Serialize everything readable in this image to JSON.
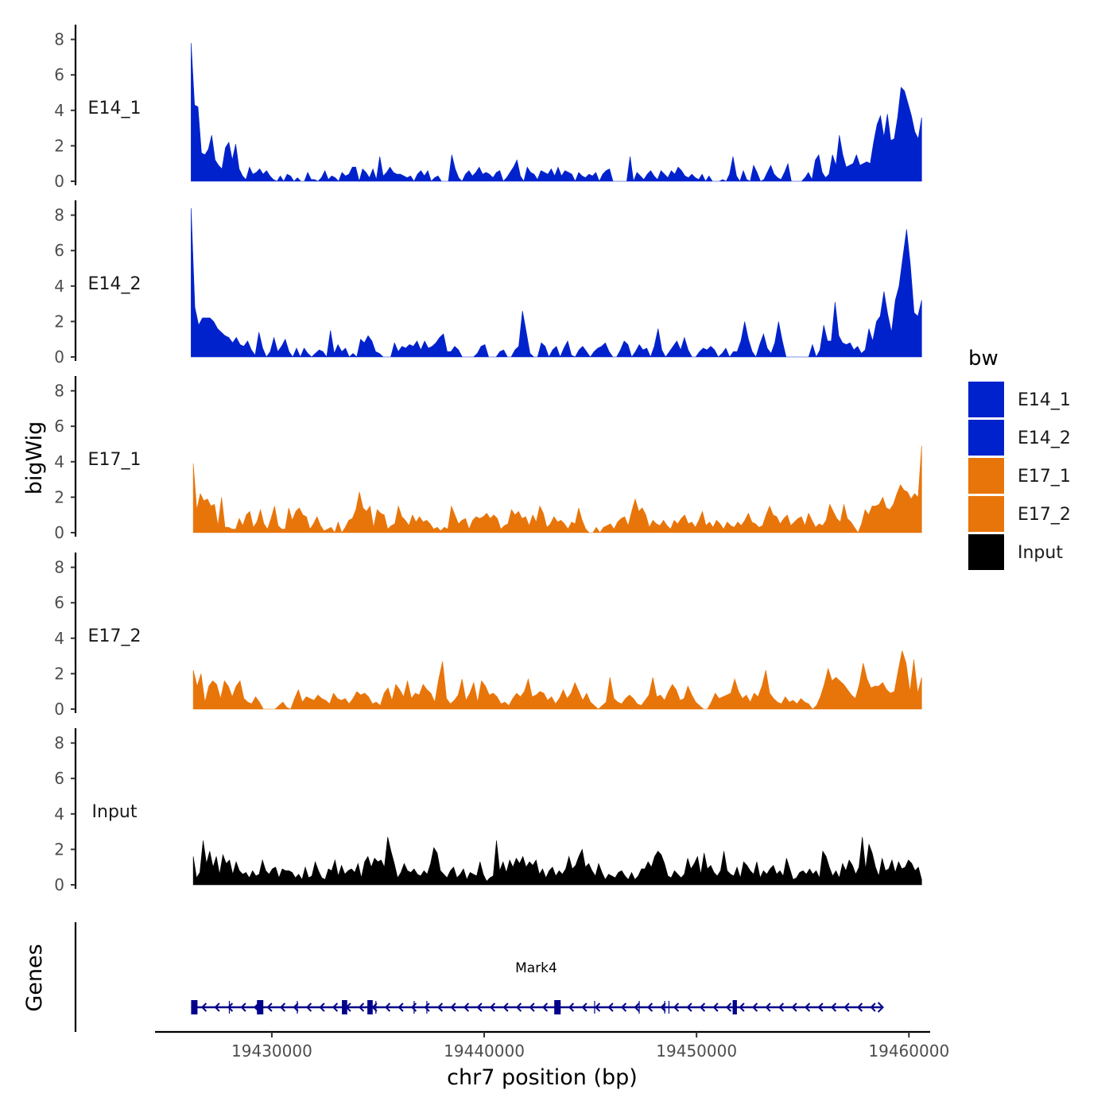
{
  "chart_data": {
    "type": "area",
    "xlabel": "chr7 position (bp)",
    "ylabel": "bigWig",
    "genes_label": "Genes",
    "chromosome": "chr7",
    "xlim": [
      19424500,
      19461000
    ],
    "x_ticks": [
      19430000,
      19440000,
      19450000,
      19460000
    ],
    "x_tick_labels": [
      "19430000",
      "19440000",
      "19450000",
      "19460000"
    ],
    "ylim": [
      0,
      8.5
    ],
    "y_ticks": [
      0,
      2,
      4,
      6,
      8
    ],
    "y_tick_labels": [
      "0",
      "2",
      "4",
      "6",
      "8"
    ],
    "legend": {
      "title": "bw",
      "position": "right",
      "entries": [
        {
          "label": "E14_1",
          "color": "#0022cc"
        },
        {
          "label": "E14_2",
          "color": "#0022cc"
        },
        {
          "label": "E17_1",
          "color": "#e8750a"
        },
        {
          "label": "E17_2",
          "color": "#e8750a"
        },
        {
          "label": "Input",
          "color": "#000000"
        }
      ]
    },
    "series": [
      {
        "name": "E14_1",
        "color": "#0022cc",
        "x_start": 19426200,
        "x_end": 19460600,
        "values": [
          7.8,
          4.3,
          4.2,
          1.6,
          1.5,
          1.8,
          2.6,
          1.2,
          0.9,
          0.7,
          1.9,
          2.2,
          1.2,
          2.1,
          0.7,
          0.3,
          0.1,
          0.8,
          0.4,
          0.5,
          0.7,
          0.4,
          0.6,
          0.3,
          0.1,
          0,
          0.3,
          0,
          0.4,
          0.3,
          0,
          0.2,
          0,
          0,
          0.5,
          0.1,
          0.1,
          0,
          0.2,
          0.6,
          0.1,
          0.3,
          0.2,
          0,
          0.5,
          0.3,
          0.4,
          0.8,
          0.8,
          0,
          0.7,
          0.5,
          0.2,
          0.7,
          0.1,
          1.4,
          0.3,
          0.5,
          0.8,
          0.5,
          0.4,
          0.4,
          0.3,
          0.2,
          0.3,
          0,
          0.4,
          0.6,
          0.3,
          0.6,
          0,
          0.2,
          0.3,
          0,
          0,
          0,
          1.5,
          0.7,
          0.2,
          0,
          0.4,
          0.6,
          0.3,
          0.5,
          0.8,
          0.4,
          0.5,
          0.4,
          0.2,
          0.5,
          0.6,
          0,
          0.2,
          0.5,
          0.8,
          1.2,
          0.3,
          0,
          0.8,
          0.5,
          0.4,
          0.1,
          0.6,
          0.5,
          0.4,
          0.7,
          0.3,
          0.8,
          0.3,
          0.6,
          0.5,
          0.4,
          0,
          0.5,
          0.3,
          0.2,
          0.4,
          0.3,
          0.5,
          0,
          0.4,
          0.6,
          0.7,
          0,
          0,
          0,
          0,
          0,
          1.4,
          0,
          0.5,
          0.3,
          0.1,
          0.4,
          0.6,
          0.3,
          0.1,
          0.6,
          0.4,
          0.2,
          0.6,
          0.4,
          0.8,
          0.6,
          0.3,
          0.2,
          0.4,
          0.2,
          0.1,
          0.4,
          0,
          0.3,
          0,
          0,
          0,
          0.1,
          0,
          0.4,
          1.4,
          0.3,
          0,
          0.6,
          0.1,
          0,
          0.9,
          0.5,
          0,
          0.1,
          0.5,
          0.9,
          0.4,
          0.2,
          0.1,
          0.5,
          1.0,
          0,
          0,
          0,
          0,
          0.2,
          0.5,
          0.1,
          1.2,
          1.5,
          0.5,
          0.2,
          0.4,
          1.5,
          0.9,
          2.6,
          1.5,
          0.8,
          0.9,
          1.0,
          1.5,
          0.9,
          1.0,
          1.1,
          1.0,
          2.2,
          3.2,
          3.7,
          2.5,
          3.8,
          2.3,
          2.4,
          3.6,
          5.3,
          5.1,
          4.4,
          3.7,
          2.8,
          2.4,
          3.6
        ]
      },
      {
        "name": "E14_2",
        "color": "#0022cc",
        "x_start": 19426200,
        "x_end": 19460600,
        "values": [
          8.4,
          2.8,
          1.8,
          2.2,
          2.2,
          2.2,
          2.0,
          1.6,
          1.4,
          1.2,
          1.1,
          0.8,
          1.1,
          0.7,
          0.6,
          0.9,
          0.4,
          0.1,
          1.4,
          0.5,
          0,
          0.3,
          1.1,
          0.3,
          0.6,
          1.0,
          0.3,
          0,
          0.5,
          0,
          0.5,
          0.2,
          0,
          0.2,
          0.4,
          0.3,
          0,
          1.5,
          0.2,
          0.7,
          0.3,
          0.5,
          0,
          0.2,
          0,
          1.0,
          0.8,
          1.2,
          0.9,
          0.3,
          0.2,
          0,
          0,
          0,
          0.8,
          0.3,
          0.6,
          0.5,
          0.7,
          0.6,
          0.9,
          0.4,
          0.9,
          0.5,
          0.6,
          0.8,
          1.1,
          1.3,
          0.3,
          0.3,
          0.6,
          0.4,
          0,
          0,
          0,
          0,
          0.2,
          0.6,
          0.7,
          0,
          0,
          0,
          0.3,
          0.4,
          0,
          0,
          0.4,
          0.6,
          2.6,
          1.4,
          0.2,
          0,
          0,
          0.8,
          0.6,
          0,
          0.4,
          0.6,
          0,
          0.5,
          0.9,
          0.1,
          0,
          0.4,
          0.6,
          0.3,
          0,
          0.3,
          0.5,
          0.6,
          0.8,
          0.3,
          0,
          0,
          0.4,
          0.9,
          0.7,
          0,
          0.3,
          0.7,
          0.4,
          0.5,
          0,
          0.6,
          1.6,
          0.4,
          0,
          0.3,
          0.6,
          0.9,
          0.4,
          1.1,
          0.4,
          0,
          0,
          0.3,
          0.5,
          0.4,
          0.6,
          0.4,
          0,
          0.2,
          0.5,
          0,
          0.3,
          0.3,
          0.9,
          2.0,
          1.0,
          0.3,
          0,
          0.7,
          1.3,
          0.5,
          0.2,
          0.8,
          2.0,
          0.9,
          0,
          0,
          0,
          0,
          0,
          0,
          0,
          0.7,
          0,
          0.4,
          1.8,
          0.9,
          0.9,
          3.1,
          1.2,
          0.8,
          0.7,
          0.8,
          0.4,
          0.6,
          0.2,
          0.4,
          1.6,
          0.9,
          2.0,
          2.3,
          3.7,
          2.4,
          1.4,
          3.2,
          4.0,
          5.6,
          7.2,
          5.2,
          2.5,
          2.3,
          3.2
        ]
      },
      {
        "name": "E17_1",
        "color": "#e8750a",
        "x_start": 19426300,
        "x_end": 19460600,
        "values": [
          3.9,
          1.3,
          2.2,
          1.8,
          1.9,
          1.5,
          1.6,
          0.4,
          2.0,
          0.3,
          0.3,
          0.2,
          0.2,
          0.8,
          0.4,
          1.0,
          1.2,
          0.3,
          0.6,
          1.3,
          0.5,
          0.2,
          0.8,
          1.5,
          0.4,
          0.2,
          0.2,
          1.4,
          0.7,
          1.2,
          1.4,
          1.0,
          0.9,
          0.2,
          0.5,
          0.9,
          0.4,
          0.1,
          0.2,
          0.3,
          0,
          0.6,
          0,
          0.3,
          0.7,
          0.8,
          1.3,
          2.3,
          1.4,
          1.2,
          1.5,
          0.3,
          1.3,
          1.1,
          1.0,
          0.2,
          0.4,
          0.5,
          1.5,
          0.9,
          0.7,
          0.4,
          1.0,
          0.6,
          0.9,
          0.6,
          0.7,
          0.5,
          0.2,
          0.3,
          0.1,
          0.3,
          0.2,
          1.5,
          1.0,
          0.5,
          0.7,
          0.8,
          0.2,
          0.7,
          0.9,
          0.8,
          0.9,
          1.1,
          0.8,
          1.0,
          0.8,
          0.2,
          0.4,
          0.5,
          1.3,
          1.0,
          1.2,
          0.8,
          0.9,
          0.4,
          1.0,
          0.6,
          1.5,
          1.1,
          0.3,
          0.5,
          0.9,
          0.6,
          0.7,
          0.5,
          0.2,
          0.6,
          0.5,
          1.4,
          0.7,
          0.2,
          0,
          0,
          0.3,
          0,
          0.3,
          0.4,
          0.5,
          0.2,
          0.6,
          0.8,
          0.9,
          0.4,
          1.2,
          1.9,
          1.2,
          1.4,
          1.0,
          0.3,
          0.7,
          0.5,
          0.4,
          0.7,
          0.4,
          0.2,
          0.7,
          0.5,
          0.8,
          1.0,
          0.5,
          0.6,
          0.3,
          0.7,
          1.2,
          0.4,
          0.6,
          0.3,
          0.7,
          0.5,
          0.2,
          0.6,
          0.4,
          0.3,
          0.6,
          0.4,
          0.7,
          1.1,
          0.6,
          0.5,
          0.3,
          0.4,
          1.0,
          1.5,
          1.0,
          0.9,
          0.5,
          0.8,
          1.0,
          0.4,
          0.6,
          0.8,
          0.9,
          0.4,
          1.1,
          0.7,
          0.3,
          0.5,
          0.4,
          0.7,
          1.6,
          1.2,
          0.8,
          0.6,
          1.6,
          0.8,
          0.6,
          0.3,
          0,
          0.5,
          1.3,
          1.0,
          1.5,
          1.5,
          1.6,
          2.0,
          1.4,
          1.3,
          1.6,
          2.2,
          2.7,
          2.4,
          2.3,
          1.9,
          2.2,
          2.0,
          4.9
        ]
      },
      {
        "name": "E17_2",
        "color": "#e8750a",
        "x_start": 19426300,
        "x_end": 19460600,
        "values": [
          2.2,
          1.3,
          2.0,
          0.4,
          1.3,
          1.6,
          1.4,
          0.6,
          1.6,
          1.3,
          0.7,
          1.3,
          1.6,
          0.6,
          0.4,
          0.3,
          0.7,
          0.4,
          0,
          0,
          0,
          0,
          0.2,
          0.4,
          0.1,
          0,
          0.6,
          1.1,
          0.4,
          0.7,
          0.6,
          0.5,
          0.8,
          0.6,
          0.5,
          0.3,
          0.9,
          0.6,
          0.5,
          0.6,
          0.3,
          0.6,
          1.0,
          0.8,
          0.9,
          0.7,
          0.3,
          0.4,
          0.2,
          0.9,
          1.2,
          0.5,
          1.4,
          1.1,
          0.7,
          1.6,
          0.6,
          0.9,
          0.8,
          1.4,
          1.1,
          0.9,
          0.4,
          1.7,
          2.7,
          0.6,
          0.3,
          0.5,
          0.8,
          1.7,
          0.5,
          0.9,
          1.5,
          0.4,
          1.6,
          1.3,
          0.8,
          0.9,
          0.7,
          0.3,
          0.4,
          0.2,
          0.6,
          0.9,
          0.7,
          1.0,
          1.7,
          0.7,
          0.8,
          1.0,
          0.9,
          0.5,
          0.7,
          0.3,
          0.6,
          1.1,
          0.6,
          0.9,
          1.5,
          1.0,
          0.5,
          0.9,
          0.4,
          0.2,
          0,
          0.2,
          0.4,
          1.8,
          0.6,
          0.4,
          0.3,
          0.6,
          0.8,
          0.6,
          0.3,
          0.2,
          0.5,
          0.8,
          1.8,
          0.7,
          0.8,
          0.5,
          1.0,
          1.4,
          1.1,
          0.5,
          0.6,
          1.3,
          0.8,
          0.4,
          0.2,
          0,
          0,
          0.4,
          0.9,
          0.6,
          0.7,
          0.8,
          0.9,
          1.7,
          1.0,
          0.6,
          0.8,
          0.4,
          0.9,
          0.7,
          1.3,
          2.2,
          0.9,
          0.6,
          0.4,
          0.3,
          0.7,
          0.4,
          0.5,
          0.3,
          0.6,
          0.4,
          0.3,
          0,
          0.2,
          0.7,
          1.4,
          2.3,
          1.6,
          1.8,
          1.6,
          1.4,
          1.1,
          0.8,
          0.6,
          1.4,
          2.6,
          1.7,
          1.2,
          1.3,
          1.3,
          1.5,
          1.1,
          0.9,
          1.0,
          2.2,
          3.3,
          2.6,
          1.0,
          2.8,
          0.9,
          1.8
        ]
      },
      {
        "name": "Input",
        "color": "#000000",
        "x_start": 19426300,
        "x_end": 19460600,
        "values": [
          1.6,
          0.4,
          0.7,
          2.5,
          1.2,
          1.9,
          1.0,
          1.6,
          0.6,
          1.7,
          1.2,
          1.4,
          0.6,
          1.3,
          0.8,
          0.6,
          0.7,
          0.4,
          0.8,
          0.5,
          0.6,
          1.4,
          0.8,
          0.6,
          0.9,
          1.0,
          0.4,
          0.9,
          0.8,
          0.8,
          0.7,
          0.4,
          0.6,
          0.3,
          1.0,
          0.4,
          0.5,
          1.3,
          0.8,
          0.4,
          0.3,
          0.9,
          0.8,
          1.4,
          0.5,
          1.1,
          0.6,
          0.8,
          0.9,
          0.7,
          1.2,
          0.4,
          1.3,
          1.6,
          1.0,
          1.5,
          1.3,
          1.4,
          1.0,
          2.7,
          1.9,
          1.2,
          0.4,
          0.7,
          1.2,
          0.8,
          0.7,
          0.9,
          0.6,
          0.5,
          0.8,
          0.6,
          1.2,
          2.1,
          1.8,
          0.8,
          0.6,
          0.4,
          0.8,
          1.0,
          0.4,
          0.6,
          0.9,
          0.3,
          0.7,
          0.6,
          0.5,
          1.3,
          0.6,
          0.2,
          0.4,
          0.5,
          2.5,
          0.8,
          1.3,
          0.7,
          1.4,
          1.0,
          1.5,
          1.2,
          1.6,
          1.0,
          1.3,
          1.1,
          1.4,
          0.6,
          0.9,
          0.4,
          0.8,
          1.0,
          0.5,
          0.8,
          0.6,
          0.9,
          1.6,
          0.9,
          1.1,
          1.6,
          2.0,
          1.0,
          1.2,
          0.8,
          0.5,
          1.2,
          0.7,
          0.3,
          0.6,
          0.5,
          0.4,
          0.7,
          0.8,
          0.5,
          0.3,
          0.7,
          0.3,
          0.5,
          0.9,
          0.9,
          1.3,
          1.0,
          1.6,
          1.9,
          1.7,
          1.2,
          0.5,
          0.4,
          0.8,
          0.6,
          0.4,
          0.6,
          1.5,
          0.9,
          1.2,
          1.6,
          0.6,
          1.8,
          0.9,
          1.1,
          0.7,
          0.5,
          0.8,
          1.9,
          0.8,
          0.6,
          0.5,
          1.0,
          0.4,
          1.3,
          1.1,
          0.8,
          0.6,
          1.3,
          0.4,
          0.8,
          0.6,
          0.9,
          1.1,
          0.6,
          0.8,
          0.5,
          1.5,
          0.9,
          0.3,
          0.4,
          0.7,
          0.8,
          0.6,
          0.9,
          0.6,
          0.8,
          0.4,
          1.9,
          1.6,
          1.0,
          0.5,
          0.8,
          0.4,
          1.2,
          0.8,
          1.4,
          1.1,
          0.6,
          1.0,
          2.7,
          0.9,
          2.3,
          1.8,
          1.0,
          0.5,
          1.5,
          0.8,
          0.9,
          1.4,
          0.7,
          1.3,
          0.9,
          1.0,
          1.4,
          1.2,
          0.8,
          1.0,
          0.3
        ]
      }
    ],
    "genes": [
      {
        "name": "Mark4",
        "start": 19426200,
        "end": 19458700,
        "strand": "-",
        "exons": [
          [
            19426200,
            19426500
          ],
          [
            19429300,
            19429600
          ],
          [
            19433300,
            19433550
          ],
          [
            19434500,
            19434750
          ],
          [
            19443300,
            19443600
          ],
          [
            19451700,
            19451900
          ]
        ],
        "introns_marks": [
          19428000,
          19431200,
          19434900,
          19436700,
          19437300,
          19445200,
          19447300,
          19448500,
          19448700
        ]
      }
    ]
  }
}
